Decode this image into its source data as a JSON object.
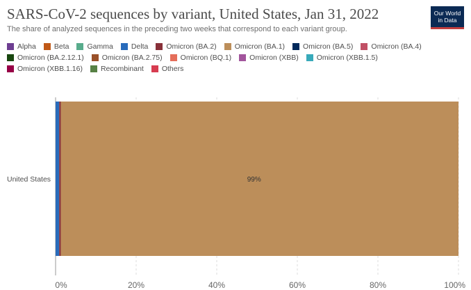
{
  "header": {
    "title": "SARS-CoV-2 sequences by variant, United States, Jan 31, 2022",
    "subtitle": "The share of analyzed sequences in the preceding two weeks that correspond to each variant group.",
    "logo_line1": "Our World",
    "logo_line2": "in Data"
  },
  "legend": [
    {
      "name": "Alpha",
      "color": "#6d3e91"
    },
    {
      "name": "Beta",
      "color": "#c05917"
    },
    {
      "name": "Gamma",
      "color": "#58ac8c"
    },
    {
      "name": "Delta",
      "color": "#286bbb"
    },
    {
      "name": "Omicron (BA.2)",
      "color": "#883039"
    },
    {
      "name": "Omicron (BA.1)",
      "color": "#bc8e5a"
    },
    {
      "name": "Omicron (BA.5)",
      "color": "#00295b"
    },
    {
      "name": "Omicron (BA.4)",
      "color": "#c15065"
    },
    {
      "name": "Omicron (BA.2.12.1)",
      "color": "#18470f"
    },
    {
      "name": "Omicron (BA.2.75)",
      "color": "#9a5129"
    },
    {
      "name": "Omicron (BQ.1)",
      "color": "#e56e5a"
    },
    {
      "name": "Omicron (XBB)",
      "color": "#a2559c"
    },
    {
      "name": "Omicron (XBB.1.5)",
      "color": "#38aaba"
    },
    {
      "name": "Omicron (XBB.1.16)",
      "color": "#970046"
    },
    {
      "name": "Recombinant",
      "color": "#578145"
    },
    {
      "name": "Others",
      "color": "#d73c50"
    }
  ],
  "chart_data": {
    "type": "bar",
    "orientation": "horizontal",
    "stacked": true,
    "categories": [
      "United States"
    ],
    "series": [
      {
        "name": "Delta",
        "values": [
          0.9
        ],
        "color": "#286bbb"
      },
      {
        "name": "Omicron (BA.2)",
        "values": [
          0.4
        ],
        "color": "#883039"
      },
      {
        "name": "Omicron (BA.1)",
        "values": [
          98.7
        ],
        "color": "#bc8e5a"
      }
    ],
    "bar_labels": [
      "",
      "",
      "99%"
    ],
    "xlim": [
      0,
      100
    ],
    "xticks": [
      "0%",
      "20%",
      "40%",
      "60%",
      "80%",
      "100%"
    ],
    "grid": true
  }
}
